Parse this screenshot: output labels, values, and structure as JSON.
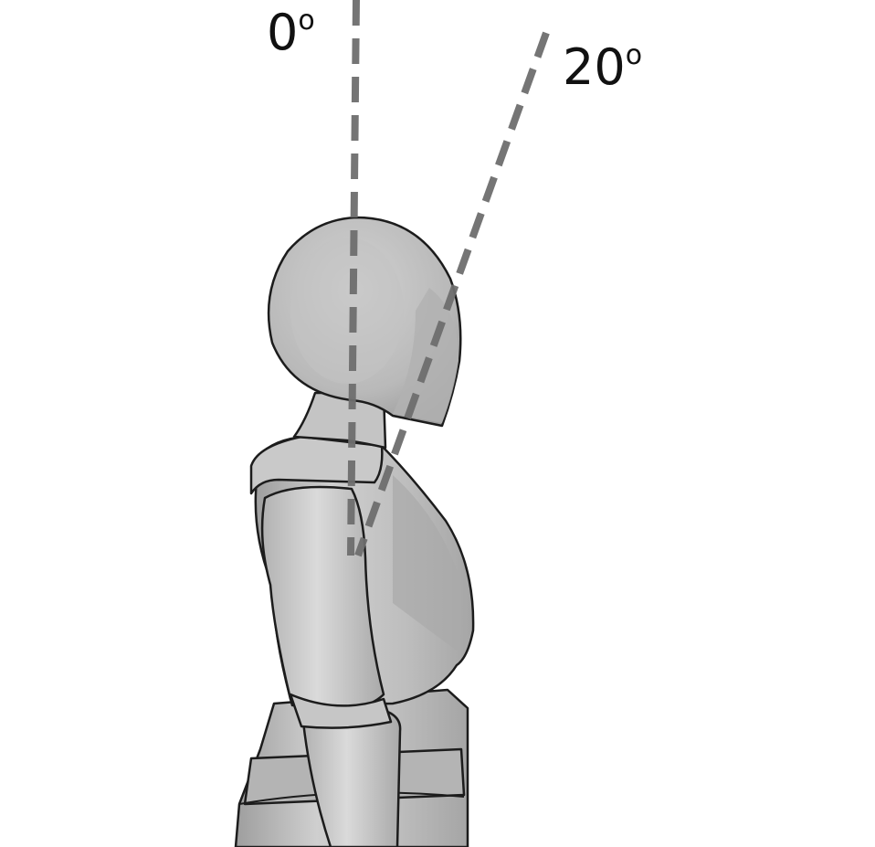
{
  "figure": {
    "labels": {
      "vertical": "0",
      "tilted": "20",
      "degree_mark": "o"
    },
    "colors": {
      "background": "#ffffff",
      "figure_fill": "#bdbdbd",
      "figure_shadow": "#a8a8a8",
      "figure_highlight": "#d6d6d6",
      "outline": "#1c1c1c",
      "guide_line": "#6e6e6e",
      "label_text": "#111111"
    },
    "guide_angles_deg": [
      0,
      20
    ]
  }
}
